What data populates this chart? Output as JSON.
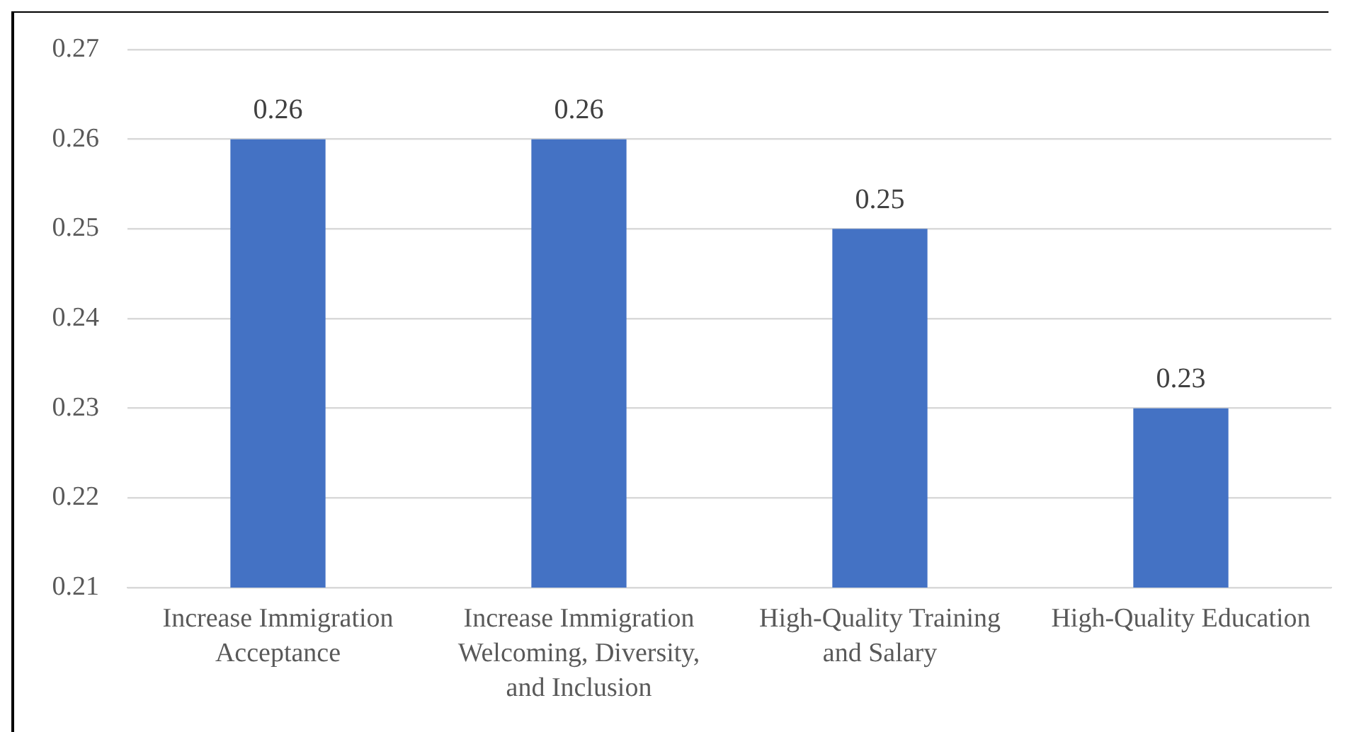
{
  "chart_data": {
    "type": "bar",
    "categories": [
      "Increase Immigration Acceptance",
      "Increase Immigration Welcoming, Diversity, and Inclusion",
      "High-Quality Training and Salary",
      "High-Quality Education"
    ],
    "values": [
      0.26,
      0.26,
      0.25,
      0.23
    ],
    "color": "#4472c4",
    "ylim": [
      0.21,
      0.27
    ],
    "yticks": [
      0.21,
      0.22,
      0.23,
      0.24,
      0.25,
      0.26,
      0.27
    ],
    "grid": "y",
    "legend": false,
    "data_labels": true
  }
}
